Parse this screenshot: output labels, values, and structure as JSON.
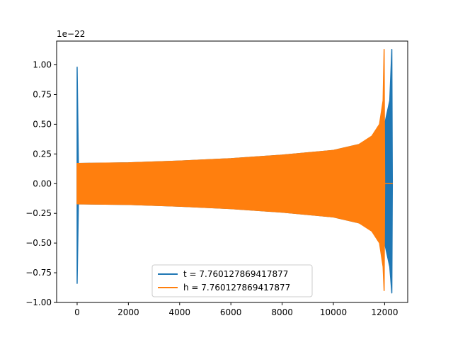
{
  "chart_data": {
    "type": "line",
    "title": "",
    "xlabel": "",
    "ylabel": "",
    "y_offset_label": "1e−22",
    "xlim": [
      -800,
      12900
    ],
    "ylim": [
      -1.0,
      1.2
    ],
    "x_ticks": [
      0,
      2000,
      4000,
      6000,
      8000,
      10000,
      12000
    ],
    "x_tick_labels": [
      "0",
      "2000",
      "4000",
      "6000",
      "8000",
      "10000",
      "12000"
    ],
    "y_ticks": [
      -1.0,
      -0.75,
      -0.5,
      -0.25,
      0.0,
      0.25,
      0.5,
      0.75,
      1.0
    ],
    "y_tick_labels": [
      "−1.00",
      "−0.75",
      "−0.50",
      "−0.25",
      "0.00",
      "0.25",
      "0.50",
      "0.75",
      "1.00"
    ],
    "grid": false,
    "legend_position": "lower-center",
    "series": [
      {
        "name": "t = 7.760127869417877",
        "color": "#1f77b4",
        "envelope": [
          [
            0,
            -0.84,
            0.98
          ],
          [
            50,
            -0.17,
            0.17
          ],
          [
            2000,
            -0.175,
            0.175
          ],
          [
            4000,
            -0.19,
            0.19
          ],
          [
            6000,
            -0.21,
            0.21
          ],
          [
            8000,
            -0.24,
            0.24
          ],
          [
            10000,
            -0.28,
            0.28
          ],
          [
            11000,
            -0.33,
            0.33
          ],
          [
            11600,
            -0.4,
            0.4
          ],
          [
            12000,
            -0.5,
            0.5
          ],
          [
            12200,
            -0.7,
            0.7
          ],
          [
            12280,
            -0.92,
            1.13
          ],
          [
            12300,
            0.0,
            0.0
          ]
        ]
      },
      {
        "name": "h = 7.760127869417877",
        "color": "#ff7f0e",
        "envelope": [
          [
            0,
            -0.17,
            0.17
          ],
          [
            2000,
            -0.175,
            0.175
          ],
          [
            4000,
            -0.19,
            0.19
          ],
          [
            6000,
            -0.21,
            0.21
          ],
          [
            8000,
            -0.24,
            0.24
          ],
          [
            10000,
            -0.28,
            0.28
          ],
          [
            11000,
            -0.33,
            0.33
          ],
          [
            11500,
            -0.4,
            0.4
          ],
          [
            11800,
            -0.5,
            0.5
          ],
          [
            11940,
            -0.7,
            0.7
          ],
          [
            11980,
            -0.9,
            1.13
          ],
          [
            12000,
            0.0,
            0.0
          ],
          [
            12300,
            0.0,
            0.0
          ]
        ]
      }
    ]
  }
}
